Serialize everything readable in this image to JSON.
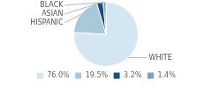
{
  "chart_data": {
    "type": "pie",
    "categories": [
      "WHITE",
      "HISPANIC",
      "ASIAN",
      "BLACK"
    ],
    "values": [
      76.0,
      19.5,
      3.2,
      1.4
    ],
    "value_labels": [
      "76.0%",
      "19.5%",
      "3.2%",
      "1.4%"
    ],
    "colors": [
      "#d4e6f1",
      "#a9c8da",
      "#1a4f78",
      "#7e9fb5"
    ],
    "legend": "bottom"
  }
}
